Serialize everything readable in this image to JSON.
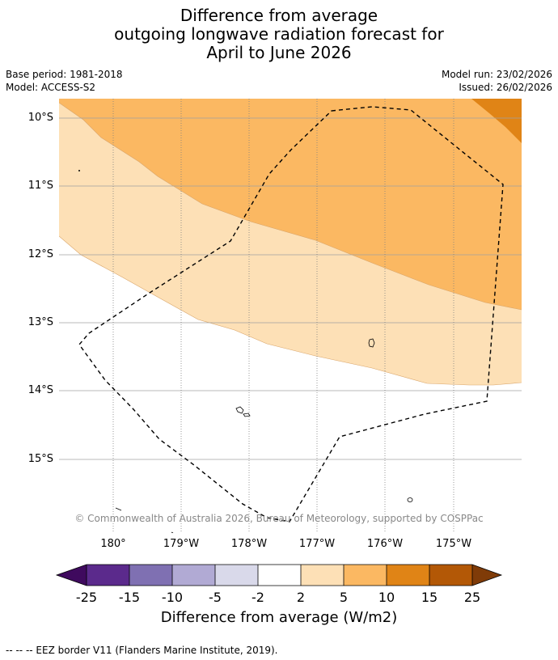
{
  "title": {
    "line1": "Difference from average",
    "line2": "outgoing longwave radiation forecast for",
    "line3": "April to June 2026"
  },
  "meta": {
    "base_period": "Base period: 1981-2018",
    "model": "Model: ACCESS-S2",
    "model_run": "Model run: 23/02/2026",
    "issued": "Issued: 26/02/2026"
  },
  "map": {
    "lat_labels": [
      "10°S",
      "11°S",
      "12°S",
      "13°S",
      "14°S",
      "15°S"
    ],
    "lon_labels": [
      "180°",
      "179°W",
      "178°W",
      "177°W",
      "176°W",
      "175°W"
    ],
    "copyright": "© Commonwealth of Australia 2026, Bureau of Meteorology, supported by COSPPac",
    "eez_border_style": "dashed",
    "fill_colors": {
      "band_2_5": "#fde0b6",
      "band_5_10": "#fbb862",
      "band_10_15": "#e08416"
    }
  },
  "colorbar": {
    "label": "Difference from average (W/m2)",
    "ticks": [
      "-25",
      "-15",
      "-10",
      "-5",
      "-2",
      "2",
      "5",
      "10",
      "15",
      "25"
    ],
    "colors": [
      "#3f0a5e",
      "#5b2a8c",
      "#7f70b2",
      "#b1aad4",
      "#d9d9ea",
      "#ffffff",
      "#fde0b6",
      "#fbb862",
      "#e08416",
      "#b35806",
      "#7f3b08"
    ]
  },
  "legend": {
    "text": "--  --  -- EEZ border V11 (Flanders Marine Institute, 2019)."
  }
}
